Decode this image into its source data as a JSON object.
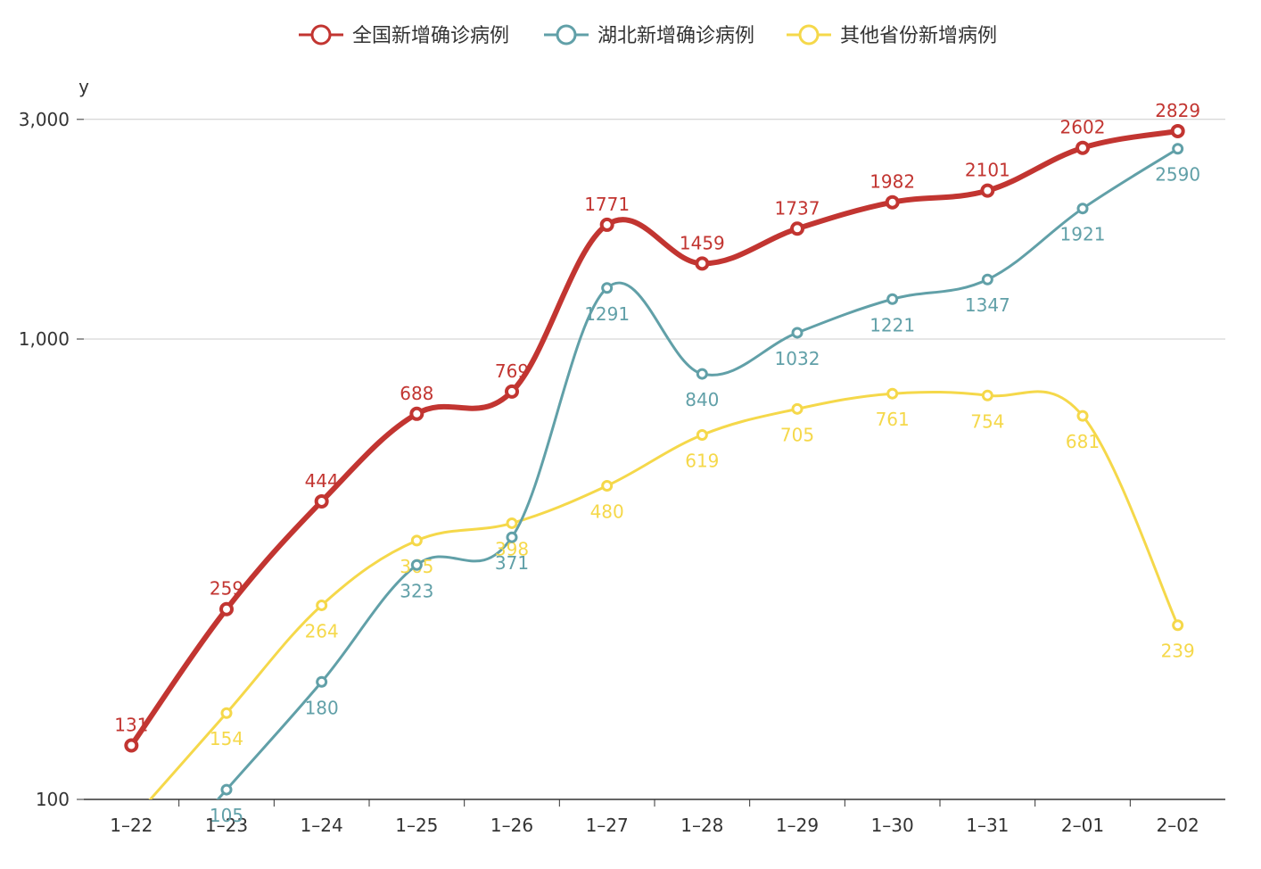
{
  "chart_data": {
    "type": "line",
    "title": "",
    "xlabel": "",
    "ylabel": "y",
    "yscale": "log",
    "ylim": [
      100,
      3300
    ],
    "yticks": [
      100,
      1000,
      3000
    ],
    "ytick_labels": [
      "100",
      "1,000",
      "3,000"
    ],
    "grid": "horizontal",
    "legend_position": "top-center",
    "categories": [
      "1-22",
      "1-23",
      "1-24",
      "1-25",
      "1-26",
      "1-27",
      "1-28",
      "1-29",
      "1-30",
      "1-31",
      "2-01",
      "2-02"
    ],
    "series": [
      {
        "name": "全国新增确诊病例",
        "color": "#c23531",
        "values": [
          131,
          259,
          444,
          688,
          769,
          1771,
          1459,
          1737,
          1982,
          2101,
          2602,
          2829
        ]
      },
      {
        "name": "湖北新增确诊病例",
        "color": "#61a0a8",
        "values": [
          null,
          105,
          180,
          323,
          371,
          1291,
          840,
          1032,
          1221,
          1347,
          1921,
          2590
        ]
      },
      {
        "name": "其他省份新增病例",
        "color": "#f5d84a",
        "values": [
          null,
          154,
          264,
          365,
          398,
          480,
          619,
          705,
          761,
          754,
          681,
          239
        ]
      }
    ],
    "data_labels": [
      [
        "131",
        "259",
        "444",
        "688",
        "769",
        "1771",
        "1459",
        "1737",
        "1982",
        "2101",
        "2602",
        "2829"
      ],
      [
        "",
        "105",
        "180",
        "323",
        "371",
        "1291",
        "840",
        "1032",
        "1221",
        "1347",
        "1921",
        "2590"
      ],
      [
        "",
        "154",
        "264",
        "365",
        "398",
        "480",
        "619",
        "705",
        "761",
        "754",
        "681",
        "239"
      ]
    ]
  }
}
